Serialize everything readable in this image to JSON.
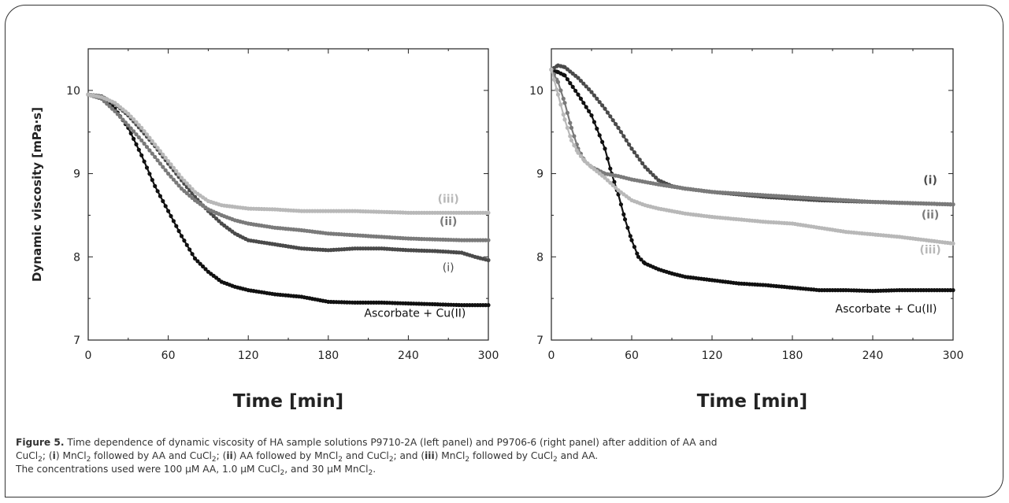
{
  "chart_data": [
    {
      "type": "line",
      "panel": "left",
      "xlabel": "Time [min]",
      "ylabel": "Dynamic viscosity [mPa·s]",
      "xlim": [
        0,
        300
      ],
      "ylim": [
        7,
        10.5
      ],
      "xticks": [
        0,
        60,
        120,
        180,
        240,
        300
      ],
      "yticks": [
        7,
        8,
        9,
        10
      ],
      "grid": false,
      "series": [
        {
          "name": "Ascorbate + Cu(II)",
          "color": "#111111",
          "x": [
            0,
            10,
            20,
            30,
            40,
            50,
            60,
            70,
            80,
            90,
            100,
            110,
            120,
            140,
            160,
            180,
            200,
            220,
            240,
            260,
            280,
            300
          ],
          "y": [
            9.95,
            9.92,
            9.78,
            9.55,
            9.22,
            8.85,
            8.55,
            8.25,
            7.98,
            7.82,
            7.7,
            7.64,
            7.6,
            7.55,
            7.52,
            7.46,
            7.45,
            7.45,
            7.44,
            7.43,
            7.42,
            7.42
          ]
        },
        {
          "name": "(i)",
          "color": "#4a4a4a",
          "x": [
            0,
            10,
            20,
            30,
            40,
            50,
            60,
            70,
            80,
            90,
            100,
            110,
            120,
            140,
            160,
            180,
            200,
            220,
            240,
            260,
            280,
            290,
            300
          ],
          "y": [
            9.95,
            9.93,
            9.84,
            9.7,
            9.52,
            9.33,
            9.12,
            8.92,
            8.72,
            8.55,
            8.4,
            8.28,
            8.2,
            8.15,
            8.1,
            8.08,
            8.1,
            8.1,
            8.08,
            8.07,
            8.05,
            8.0,
            7.96
          ]
        },
        {
          "name": "(ii)",
          "color": "#7a7a7a",
          "x": [
            0,
            10,
            20,
            30,
            40,
            50,
            60,
            70,
            80,
            90,
            100,
            110,
            120,
            140,
            160,
            180,
            200,
            220,
            240,
            260,
            280,
            300
          ],
          "y": [
            9.95,
            9.9,
            9.75,
            9.58,
            9.4,
            9.2,
            9.0,
            8.82,
            8.68,
            8.57,
            8.5,
            8.44,
            8.4,
            8.35,
            8.32,
            8.28,
            8.26,
            8.24,
            8.22,
            8.21,
            8.2,
            8.2
          ]
        },
        {
          "name": "(iii)",
          "color": "#b8b8b8",
          "x": [
            0,
            10,
            20,
            30,
            40,
            50,
            60,
            70,
            80,
            90,
            100,
            110,
            120,
            140,
            160,
            180,
            200,
            220,
            240,
            260,
            280,
            300
          ],
          "y": [
            9.95,
            9.92,
            9.85,
            9.72,
            9.55,
            9.35,
            9.15,
            8.95,
            8.78,
            8.67,
            8.62,
            8.6,
            8.58,
            8.57,
            8.55,
            8.55,
            8.55,
            8.54,
            8.53,
            8.53,
            8.53,
            8.53
          ]
        }
      ],
      "annotations": [
        {
          "text": "(iii)",
          "x": 270,
          "y": 8.65,
          "color": "#b8b8b8",
          "bold": true
        },
        {
          "text": "(ii)",
          "x": 270,
          "y": 8.38,
          "color": "#7a7a7a",
          "bold": true
        },
        {
          "text": "(i)",
          "x": 270,
          "y": 7.83,
          "color": "#4a4a4a",
          "bold": false
        },
        {
          "text": "Ascorbate + Cu(II)",
          "x": 245,
          "y": 7.28,
          "color": "#111111",
          "bold": false
        }
      ]
    },
    {
      "type": "line",
      "panel": "right",
      "xlabel": "Time [min]",
      "ylabel": "",
      "xlim": [
        0,
        300
      ],
      "ylim": [
        7,
        10.5
      ],
      "xticks": [
        0,
        60,
        120,
        180,
        240,
        300
      ],
      "yticks": [
        7,
        8,
        9,
        10
      ],
      "grid": false,
      "series": [
        {
          "name": "Ascorbate + Cu(II)",
          "color": "#111111",
          "x": [
            0,
            5,
            10,
            20,
            30,
            40,
            45,
            50,
            55,
            60,
            65,
            70,
            80,
            90,
            100,
            120,
            140,
            160,
            180,
            200,
            220,
            240,
            260,
            280,
            300
          ],
          "y": [
            10.25,
            10.22,
            10.18,
            9.95,
            9.7,
            9.3,
            9.0,
            8.75,
            8.45,
            8.2,
            8.0,
            7.92,
            7.85,
            7.8,
            7.76,
            7.72,
            7.68,
            7.66,
            7.63,
            7.6,
            7.6,
            7.59,
            7.6,
            7.6,
            7.6
          ]
        },
        {
          "name": "(i)",
          "color": "#4a4a4a",
          "x": [
            0,
            5,
            10,
            20,
            30,
            40,
            50,
            60,
            70,
            80,
            90,
            100,
            120,
            140,
            160,
            180,
            200,
            220,
            240,
            260,
            280,
            300
          ],
          "y": [
            10.25,
            10.3,
            10.28,
            10.15,
            9.98,
            9.78,
            9.55,
            9.3,
            9.08,
            8.92,
            8.85,
            8.82,
            8.78,
            8.75,
            8.72,
            8.7,
            8.68,
            8.67,
            8.66,
            8.65,
            8.64,
            8.63
          ]
        },
        {
          "name": "(ii)",
          "color": "#7a7a7a",
          "x": [
            0,
            5,
            10,
            15,
            20,
            25,
            30,
            35,
            40,
            50,
            60,
            70,
            80,
            100,
            120,
            140,
            160,
            180,
            200,
            220,
            240,
            260,
            280,
            300
          ],
          "y": [
            10.25,
            10.1,
            9.85,
            9.55,
            9.3,
            9.15,
            9.08,
            9.04,
            9.0,
            8.97,
            8.93,
            8.9,
            8.87,
            8.82,
            8.78,
            8.76,
            8.74,
            8.72,
            8.7,
            8.68,
            8.66,
            8.65,
            8.64,
            8.63
          ]
        },
        {
          "name": "(iii)",
          "color": "#b8b8b8",
          "x": [
            0,
            5,
            10,
            15,
            20,
            25,
            30,
            40,
            50,
            60,
            70,
            80,
            90,
            100,
            120,
            140,
            160,
            180,
            200,
            220,
            240,
            260,
            280,
            300
          ],
          "y": [
            10.25,
            9.95,
            9.65,
            9.4,
            9.25,
            9.15,
            9.08,
            8.95,
            8.8,
            8.68,
            8.62,
            8.58,
            8.55,
            8.52,
            8.48,
            8.45,
            8.42,
            8.4,
            8.35,
            8.3,
            8.27,
            8.24,
            8.2,
            8.16
          ]
        }
      ],
      "annotations": [
        {
          "text": "(i)",
          "x": 283,
          "y": 8.88,
          "color": "#4a4a4a",
          "bold": true
        },
        {
          "text": "(ii)",
          "x": 283,
          "y": 8.46,
          "color": "#7a7a7a",
          "bold": true
        },
        {
          "text": "(iii)",
          "x": 283,
          "y": 8.04,
          "color": "#b8b8b8",
          "bold": true
        },
        {
          "text": "Ascorbate + Cu(II)",
          "x": 250,
          "y": 7.33,
          "color": "#111111",
          "bold": false
        }
      ]
    }
  ],
  "caption": {
    "label": "Figure 5.",
    "text": "Time dependence of dynamic viscosity of HA sample solutions P9710-2A (left panel) and P9706-6 (right panel) after addition of AA and",
    "line2_a": "CuCl",
    "line2_b": "; (",
    "line2_i": "i",
    "line2_c": ") MnCl",
    "line2_d": " followed by AA and CuCl",
    "line2_e": "; (",
    "line2_ii": "ii",
    "line2_f": ") AA followed by MnCl",
    "line2_g": " and CuCl",
    "line2_h": "; and (",
    "line2_iii": "iii",
    "line2_j": ") MnCl",
    "line2_k": " followed by CuCl",
    "line2_l": " and AA.",
    "line3_a": "The concentrations used were 100 μM AA, 1.0 μM CuCl",
    "line3_b": ", and 30 μM MnCl",
    "line3_c": ".",
    "sub": "2"
  }
}
